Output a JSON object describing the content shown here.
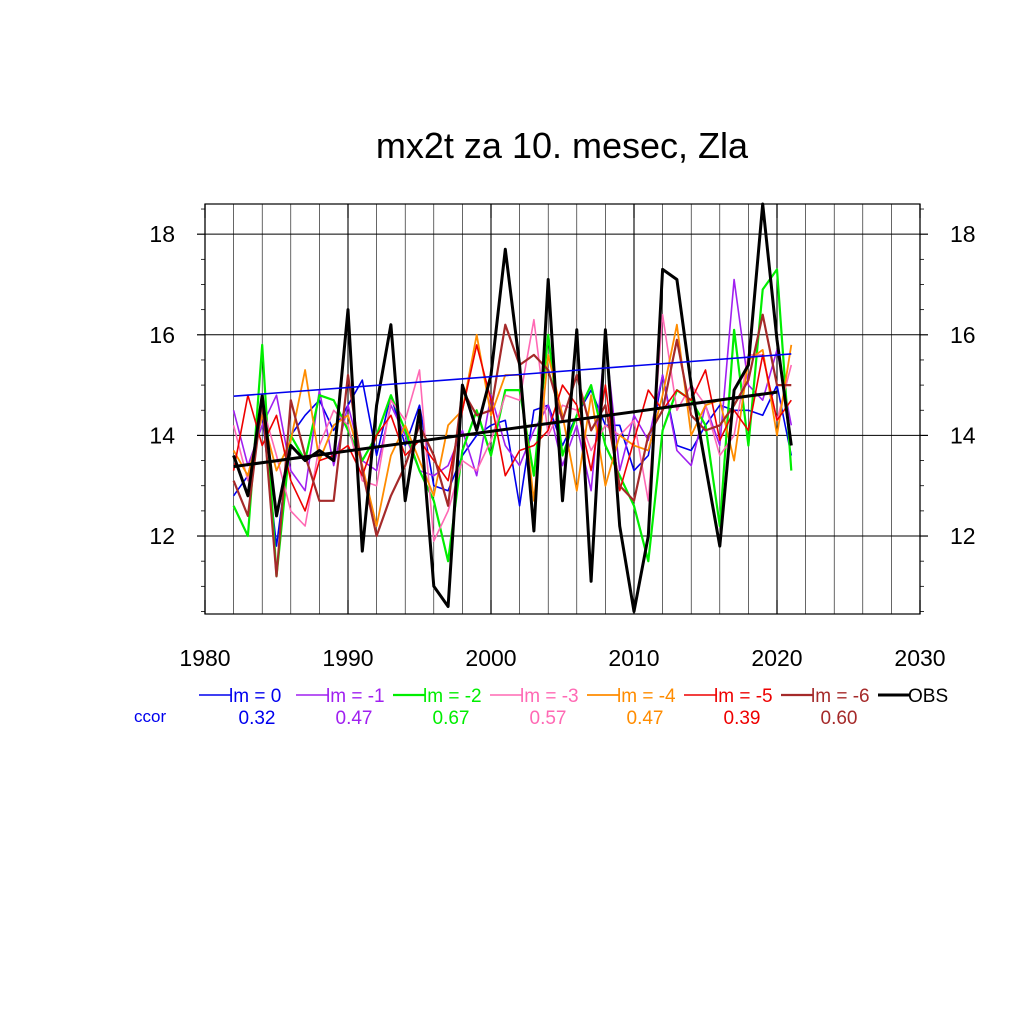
{
  "chart_data": {
    "type": "line",
    "title": "mx2t za 10. mesec, Zla",
    "xlabel": "",
    "ylabel": "",
    "xlim": [
      1980,
      2030
    ],
    "ylim": [
      10.45,
      18.6
    ],
    "x_ticks": [
      1980,
      1990,
      2000,
      2010,
      2020,
      2030
    ],
    "y_ticks": [
      12,
      14,
      16,
      18
    ],
    "grid": true,
    "legend_position": "bottom",
    "ccor_label": "ccor",
    "x": [
      1982,
      1983,
      1984,
      1985,
      1986,
      1987,
      1988,
      1989,
      1990,
      1991,
      1992,
      1993,
      1994,
      1995,
      1996,
      1997,
      1998,
      1999,
      2000,
      2001,
      2002,
      2003,
      2004,
      2005,
      2006,
      2007,
      2008,
      2009,
      2010,
      2011,
      2012,
      2013,
      2014,
      2015,
      2016,
      2017,
      2018,
      2019,
      2020,
      2021
    ],
    "series": [
      {
        "name": "lm = 0",
        "ccor": "0.32",
        "color": "#0000ee",
        "width": 1.6,
        "values": [
          12.8,
          13.2,
          14.4,
          11.8,
          14.0,
          14.4,
          14.7,
          14.1,
          14.6,
          15.1,
          13.6,
          14.8,
          13.8,
          14.6,
          13.0,
          12.9,
          13.6,
          14.0,
          14.2,
          14.3,
          12.6,
          14.5,
          14.6,
          13.8,
          14.4,
          14.9,
          14.2,
          14.2,
          13.3,
          13.6,
          15.2,
          13.8,
          13.7,
          14.2,
          14.6,
          14.5,
          14.5,
          14.4,
          15.0,
          13.6
        ]
      },
      {
        "name": "lm = -1",
        "ccor": "0.47",
        "color": "#a020f0",
        "width": 1.6,
        "values": [
          14.5,
          13.4,
          14.2,
          14.8,
          13.3,
          12.9,
          14.9,
          13.4,
          14.6,
          13.5,
          13.3,
          14.6,
          14.0,
          13.3,
          13.2,
          13.4,
          14.1,
          13.2,
          14.8,
          13.8,
          13.4,
          14.1,
          14.6,
          13.4,
          14.2,
          12.9,
          15.9,
          13.3,
          14.4,
          13.9,
          15.2,
          13.7,
          13.4,
          14.6,
          13.8,
          17.1,
          15.0,
          14.7,
          15.7,
          14.2
        ]
      },
      {
        "name": "lm = -2",
        "ccor": "0.67",
        "color": "#00ee00",
        "width": 2.2,
        "values": [
          12.6,
          12.0,
          15.8,
          11.2,
          14.0,
          13.5,
          14.8,
          14.7,
          14.1,
          13.5,
          14.0,
          14.8,
          14.1,
          13.3,
          12.7,
          11.5,
          13.7,
          14.5,
          13.6,
          14.9,
          14.9,
          13.2,
          16.0,
          13.6,
          14.4,
          15.0,
          13.8,
          13.2,
          12.6,
          11.5,
          14.1,
          14.9,
          14.7,
          14.2,
          12.2,
          16.1,
          13.8,
          16.9,
          17.3,
          13.3
        ]
      },
      {
        "name": "lm = -3",
        "ccor": "0.57",
        "color": "#ff69b4",
        "width": 1.6,
        "values": [
          14.2,
          13.1,
          14.6,
          13.6,
          12.5,
          12.2,
          13.8,
          14.5,
          14.2,
          13.1,
          13.0,
          14.7,
          14.3,
          15.3,
          11.9,
          12.5,
          13.5,
          13.3,
          13.9,
          14.8,
          14.7,
          16.3,
          14.0,
          14.6,
          14.5,
          13.7,
          14.2,
          14.0,
          14.3,
          12.7,
          16.4,
          14.5,
          15.0,
          14.6,
          13.6,
          14.0,
          15.6,
          15.6,
          14.3,
          15.4
        ]
      },
      {
        "name": "lm = -4",
        "ccor": "0.47",
        "color": "#ff8c00",
        "width": 1.8,
        "values": [
          13.7,
          13.2,
          14.4,
          13.3,
          13.9,
          15.3,
          13.5,
          14.2,
          14.4,
          13.4,
          12.2,
          13.6,
          14.2,
          13.5,
          12.8,
          14.2,
          14.5,
          16.0,
          14.4,
          15.2,
          15.2,
          12.7,
          15.6,
          14.4,
          12.9,
          14.8,
          13.0,
          14.0,
          13.8,
          13.7,
          14.8,
          16.2,
          14.0,
          14.6,
          14.7,
          13.5,
          15.5,
          15.7,
          14.0,
          15.8
        ]
      },
      {
        "name": "lm = -5",
        "ccor": "0.39",
        "color": "#ee0000",
        "width": 1.6,
        "values": [
          13.3,
          14.8,
          13.8,
          14.4,
          13.1,
          12.5,
          13.5,
          13.6,
          13.8,
          13.2,
          14.0,
          14.4,
          13.6,
          13.9,
          13.5,
          13.1,
          14.5,
          15.8,
          14.7,
          13.2,
          13.7,
          13.8,
          14.1,
          15.0,
          14.6,
          13.3,
          15.0,
          12.9,
          13.9,
          14.9,
          14.5,
          14.9,
          14.7,
          15.3,
          13.9,
          14.5,
          14.1,
          15.6,
          14.3,
          14.7
        ]
      },
      {
        "name": "lm = -6",
        "ccor": "0.60",
        "color": "#a52a2a",
        "width": 2.2,
        "values": [
          13.1,
          12.4,
          14.7,
          11.2,
          14.7,
          13.6,
          12.7,
          12.7,
          15.2,
          13.3,
          12.0,
          12.8,
          13.4,
          14.2,
          13.6,
          12.6,
          14.9,
          14.4,
          14.5,
          16.2,
          15.4,
          15.6,
          15.3,
          14.3,
          15.2,
          14.1,
          14.6,
          13.0,
          12.7,
          14.0,
          14.5,
          15.9,
          14.4,
          14.1,
          14.2,
          14.6,
          15.1,
          16.4,
          15.0,
          15.0
        ]
      },
      {
        "name": "OBS",
        "ccor": "",
        "color": "#000000",
        "width": 3.0,
        "values": [
          13.6,
          12.8,
          14.8,
          12.4,
          13.8,
          13.5,
          13.7,
          13.5,
          16.5,
          11.7,
          14.6,
          16.2,
          12.7,
          14.5,
          11.0,
          10.6,
          15.0,
          14.1,
          15.2,
          17.7,
          15.4,
          12.1,
          17.1,
          12.7,
          16.1,
          11.1,
          16.1,
          12.2,
          10.5,
          12.0,
          17.3,
          17.1,
          15.0,
          13.4,
          11.8,
          14.9,
          15.4,
          18.6,
          15.9,
          13.8
        ]
      }
    ],
    "trend_lines": [
      {
        "series": "lm = 0",
        "color": "#0000ee",
        "width": 1.6,
        "x": [
          1982,
          2021
        ],
        "y": [
          14.78,
          15.62
        ]
      },
      {
        "series": "OBS",
        "color": "#000000",
        "width": 3.0,
        "x": [
          1982,
          2020
        ],
        "y": [
          13.38,
          14.86
        ]
      }
    ]
  }
}
